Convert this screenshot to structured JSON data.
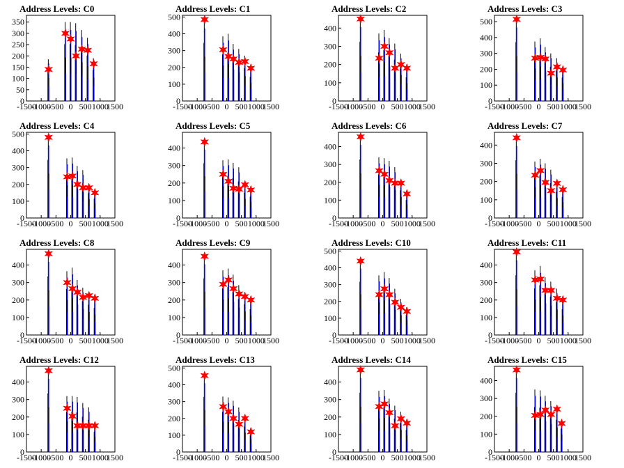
{
  "chart_data": [
    {
      "title": "Address Levels: C0",
      "type": "bar",
      "xlim": [
        -1500,
        1500
      ],
      "ylim": [
        0,
        380
      ],
      "yticks": [
        0,
        50,
        100,
        150,
        200,
        250,
        300,
        350
      ],
      "xticks": [
        -1500,
        -1000,
        -500,
        0,
        500,
        1000,
        1500
      ],
      "peaks_x": [
        -750,
        -180,
        0,
        180,
        380,
        580,
        780
      ],
      "peaks_y": [
        140,
        300,
        275,
        200,
        230,
        225,
        165
      ],
      "spike_heights": [
        185,
        350,
        350,
        345,
        315,
        280,
        190
      ]
    },
    {
      "title": "Address Levels: C1",
      "type": "bar",
      "xlim": [
        -1500,
        1500
      ],
      "ylim": [
        0,
        510
      ],
      "yticks": [
        0,
        100,
        200,
        300,
        400,
        500
      ],
      "xticks": [
        -1500,
        -1000,
        -500,
        0,
        500,
        1000,
        1500
      ],
      "peaks_x": [
        -750,
        -120,
        60,
        230,
        420,
        620,
        820
      ],
      "peaks_y": [
        485,
        305,
        265,
        250,
        230,
        235,
        195
      ],
      "spike_heights": [
        480,
        385,
        400,
        340,
        310,
        270,
        200
      ]
    },
    {
      "title": "Address Levels: C2",
      "type": "bar",
      "xlim": [
        -1500,
        1500
      ],
      "ylim": [
        0,
        470
      ],
      "yticks": [
        0,
        100,
        200,
        300,
        400
      ],
      "xticks": [
        -1500,
        -1000,
        -500,
        0,
        500,
        1000,
        1500
      ],
      "peaks_x": [
        -750,
        -120,
        60,
        230,
        420,
        620,
        820
      ],
      "peaks_y": [
        450,
        235,
        300,
        265,
        180,
        200,
        180
      ],
      "spike_heights": [
        450,
        370,
        390,
        345,
        315,
        260,
        180
      ]
    },
    {
      "title": "Address Levels: C3",
      "type": "bar",
      "xlim": [
        -1500,
        1500
      ],
      "ylim": [
        0,
        540
      ],
      "yticks": [
        0,
        100,
        200,
        300,
        400,
        500
      ],
      "xticks": [
        -1500,
        -1000,
        -500,
        0,
        500,
        1000,
        1500
      ],
      "peaks_x": [
        -750,
        -120,
        60,
        230,
        420,
        620,
        820
      ],
      "peaks_y": [
        515,
        270,
        275,
        265,
        175,
        215,
        195
      ],
      "spike_heights": [
        515,
        375,
        395,
        340,
        300,
        270,
        205
      ]
    },
    {
      "title": "Address Levels: C4",
      "type": "bar",
      "xlim": [
        -1500,
        1500
      ],
      "ylim": [
        0,
        510
      ],
      "yticks": [
        0,
        100,
        200,
        300,
        400,
        500
      ],
      "xticks": [
        -1500,
        -1000,
        -500,
        0,
        500,
        1000,
        1500
      ],
      "peaks_x": [
        -750,
        -120,
        60,
        230,
        420,
        620,
        820
      ],
      "peaks_y": [
        480,
        245,
        250,
        200,
        180,
        180,
        150
      ],
      "spike_heights": [
        480,
        355,
        360,
        310,
        285,
        205,
        160
      ]
    },
    {
      "title": "Address Levels: C5",
      "type": "bar",
      "xlim": [
        -1500,
        1500
      ],
      "ylim": [
        0,
        490
      ],
      "yticks": [
        0,
        100,
        200,
        300,
        400
      ],
      "xticks": [
        -1500,
        -1000,
        -500,
        0,
        500,
        1000,
        1500
      ],
      "peaks_x": [
        -750,
        -120,
        60,
        230,
        420,
        620,
        820
      ],
      "peaks_y": [
        435,
        250,
        210,
        170,
        165,
        190,
        160
      ],
      "spike_heights": [
        435,
        330,
        335,
        315,
        290,
        200,
        170
      ]
    },
    {
      "title": "Address Levels: C6",
      "type": "bar",
      "xlim": [
        -1500,
        1500
      ],
      "ylim": [
        0,
        480
      ],
      "yticks": [
        0,
        100,
        200,
        300,
        400
      ],
      "xticks": [
        -1500,
        -1000,
        -500,
        0,
        500,
        1000,
        1500
      ],
      "peaks_x": [
        -750,
        -120,
        60,
        230,
        420,
        620,
        820
      ],
      "peaks_y": [
        455,
        265,
        245,
        210,
        195,
        195,
        135
      ],
      "spike_heights": [
        455,
        340,
        335,
        320,
        285,
        215,
        140
      ]
    },
    {
      "title": "Address Levels: C7",
      "type": "bar",
      "xlim": [
        -1500,
        1500
      ],
      "ylim": [
        0,
        470
      ],
      "yticks": [
        0,
        100,
        200,
        300,
        400
      ],
      "xticks": [
        -1500,
        -1000,
        -500,
        0,
        500,
        1000,
        1500
      ],
      "peaks_x": [
        -750,
        -120,
        60,
        230,
        420,
        620,
        820
      ],
      "peaks_y": [
        440,
        235,
        260,
        195,
        150,
        190,
        155
      ],
      "spike_heights": [
        440,
        310,
        325,
        300,
        265,
        200,
        160
      ]
    },
    {
      "title": "Address Levels: C8",
      "type": "bar",
      "xlim": [
        -1500,
        1500
      ],
      "ylim": [
        0,
        490
      ],
      "yticks": [
        0,
        100,
        200,
        300,
        400
      ],
      "xticks": [
        -1500,
        -1000,
        -500,
        0,
        500,
        1000,
        1500
      ],
      "peaks_x": [
        -750,
        -120,
        60,
        230,
        420,
        620,
        820
      ],
      "peaks_y": [
        465,
        300,
        265,
        245,
        215,
        225,
        210
      ],
      "spike_heights": [
        465,
        365,
        385,
        315,
        270,
        240,
        215
      ]
    },
    {
      "title": "Address Levels: C9",
      "type": "bar",
      "xlim": [
        -1500,
        1500
      ],
      "ylim": [
        0,
        490
      ],
      "yticks": [
        0,
        100,
        200,
        300,
        400
      ],
      "xticks": [
        -1500,
        -1000,
        -500,
        0,
        500,
        1000,
        1500
      ],
      "peaks_x": [
        -750,
        -120,
        60,
        230,
        420,
        620,
        820
      ],
      "peaks_y": [
        450,
        290,
        315,
        265,
        235,
        220,
        200
      ],
      "spike_heights": [
        450,
        370,
        380,
        345,
        285,
        245,
        205
      ]
    },
    {
      "title": "Address Levels: C10",
      "type": "bar",
      "xlim": [
        -1500,
        1500
      ],
      "ylim": [
        0,
        510
      ],
      "yticks": [
        0,
        100,
        200,
        300,
        400,
        500
      ],
      "xticks": [
        -1500,
        -1000,
        -500,
        0,
        500,
        1000,
        1500
      ],
      "peaks_x": [
        -750,
        -120,
        60,
        230,
        420,
        620,
        820
      ],
      "peaks_y": [
        440,
        240,
        275,
        240,
        195,
        165,
        140
      ],
      "spike_heights": [
        440,
        355,
        375,
        340,
        275,
        215,
        165
      ]
    },
    {
      "title": "Address Levels: C11",
      "type": "bar",
      "xlim": [
        -1500,
        1500
      ],
      "ylim": [
        0,
        490
      ],
      "yticks": [
        0,
        100,
        200,
        300,
        400
      ],
      "xticks": [
        -1500,
        -1000,
        -500,
        0,
        500,
        1000,
        1500
      ],
      "peaks_x": [
        -750,
        -120,
        60,
        230,
        420,
        620,
        820
      ],
      "peaks_y": [
        475,
        315,
        320,
        255,
        255,
        210,
        200
      ],
      "spike_heights": [
        475,
        370,
        395,
        330,
        305,
        265,
        205
      ]
    },
    {
      "title": "Address Levels: C12",
      "type": "bar",
      "xlim": [
        -1500,
        1500
      ],
      "ylim": [
        0,
        490
      ],
      "yticks": [
        0,
        100,
        200,
        300,
        400
      ],
      "xticks": [
        -1500,
        -1000,
        -500,
        0,
        500,
        1000,
        1500
      ],
      "peaks_x": [
        -750,
        -120,
        60,
        230,
        420,
        620,
        820
      ],
      "peaks_y": [
        465,
        250,
        205,
        150,
        150,
        150,
        150
      ],
      "spike_heights": [
        465,
        320,
        320,
        315,
        280,
        255,
        160
      ]
    },
    {
      "title": "Address Levels: C13",
      "type": "bar",
      "xlim": [
        -1500,
        1500
      ],
      "ylim": [
        0,
        510
      ],
      "yticks": [
        0,
        100,
        200,
        300,
        400,
        500
      ],
      "xticks": [
        -1500,
        -1000,
        -500,
        0,
        500,
        1000,
        1500
      ],
      "peaks_x": [
        -750,
        -120,
        60,
        230,
        420,
        620,
        820
      ],
      "peaks_y": [
        455,
        270,
        240,
        200,
        165,
        200,
        120
      ],
      "spike_heights": [
        455,
        330,
        325,
        305,
        265,
        210,
        140
      ]
    },
    {
      "title": "Address Levels: C14",
      "type": "bar",
      "xlim": [
        -1500,
        1500
      ],
      "ylim": [
        0,
        490
      ],
      "yticks": [
        0,
        100,
        200,
        300,
        400
      ],
      "xticks": [
        -1500,
        -1000,
        -500,
        0,
        500,
        1000,
        1500
      ],
      "peaks_x": [
        -750,
        -120,
        60,
        230,
        420,
        620,
        820
      ],
      "peaks_y": [
        470,
        260,
        275,
        225,
        150,
        190,
        165
      ],
      "spike_heights": [
        470,
        350,
        355,
        305,
        265,
        230,
        175
      ]
    },
    {
      "title": "Address Levels: C15",
      "type": "bar",
      "xlim": [
        -1500,
        1500
      ],
      "ylim": [
        0,
        480
      ],
      "yticks": [
        0,
        100,
        200,
        300,
        400
      ],
      "xticks": [
        -1500,
        -1000,
        -500,
        0,
        500,
        1000,
        1500
      ],
      "peaks_x": [
        -750,
        -120,
        60,
        230,
        420,
        620,
        780
      ],
      "peaks_y": [
        460,
        205,
        210,
        235,
        210,
        240,
        160
      ],
      "spike_heights": [
        460,
        350,
        345,
        315,
        285,
        250,
        180
      ]
    }
  ],
  "colors": {
    "spike_black": "#000000",
    "spike_blue": "#0000ff",
    "marker": "#ff0000",
    "axis": "#000000"
  }
}
